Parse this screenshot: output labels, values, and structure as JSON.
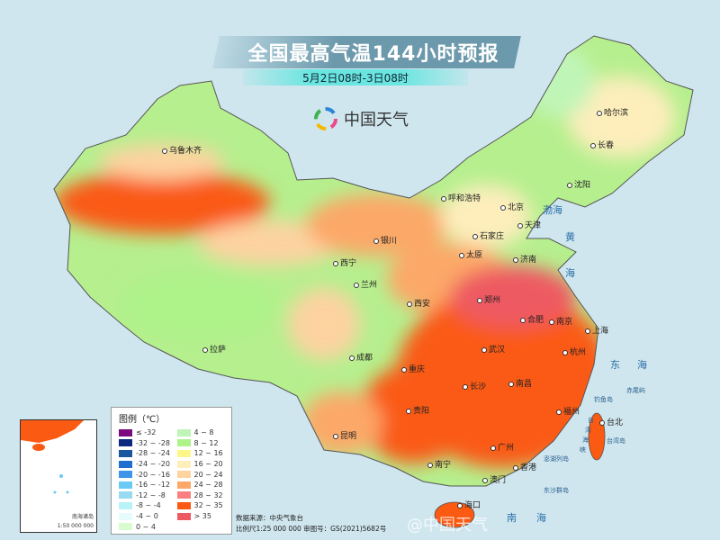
{
  "header": {
    "title": "全国最高气温144小时预报",
    "subtitle": "5月2日08时-3日08时"
  },
  "logo": {
    "icon": "pinwheel-logo-icon",
    "text": "中国天气"
  },
  "cities": [
    "乌鲁木齐",
    "哈尔滨",
    "长春",
    "沈阳",
    "呼和浩特",
    "北京",
    "天津",
    "石家庄",
    "银川",
    "太原",
    "济南",
    "西宁",
    "兰州",
    "郑州",
    "西安",
    "合肥",
    "南京",
    "上海",
    "拉萨",
    "成都",
    "武汉",
    "杭州",
    "重庆",
    "长沙",
    "南昌",
    "贵阳",
    "福州",
    "台北",
    "昆明",
    "广州",
    "南宁",
    "香港",
    "澳门",
    "海口"
  ],
  "seas": {
    "bohai": "渤海",
    "huang": "黄",
    "hai1": "海",
    "dong": "东",
    "hai2": "海",
    "nan": "南",
    "hai3": "海"
  },
  "islands": {
    "diaoyu": "钓鱼岛",
    "chiwei": "赤尾屿",
    "taiwan": "台湾岛",
    "penghu": "澎湖列岛",
    "dongsha": "东沙群岛",
    "strait1": "台",
    "strait2": "湾",
    "strait3": "海",
    "strait4": "峡"
  },
  "legend": {
    "title": "图例（℃）",
    "items": [
      {
        "label": "≤ -32",
        "color": "#7a0a7e"
      },
      {
        "label": "-32 ~ -28",
        "color": "#0a2a80"
      },
      {
        "label": "-28 ~ -24",
        "color": "#1a55a0"
      },
      {
        "label": "-24 ~ -20",
        "color": "#1f6fd0"
      },
      {
        "label": "-20 ~ -16",
        "color": "#3c95e8"
      },
      {
        "label": "-16 ~ -12",
        "color": "#6cc8f5"
      },
      {
        "label": "-12 ~ -8",
        "color": "#98daf0"
      },
      {
        "label": "-8 ~ -4",
        "color": "#b8f3f8"
      },
      {
        "label": "-4 ~ 0",
        "color": "#e6fcfc"
      },
      {
        "label": "0 ~ 4",
        "color": "#d8fbd0"
      },
      {
        "label": "4 ~ 8",
        "color": "#c0f5b8"
      },
      {
        "label": "8 ~ 12",
        "color": "#aef28a"
      },
      {
        "label": "12 ~ 16",
        "color": "#fcf788"
      },
      {
        "label": "16 ~ 20",
        "color": "#fdeebc"
      },
      {
        "label": "20 ~ 24",
        "color": "#fdd3a0"
      },
      {
        "label": "24 ~ 28",
        "color": "#fca868"
      },
      {
        "label": "28 ~ 32",
        "color": "#f88080"
      },
      {
        "label": "32 ~ 35",
        "color": "#fa5a12"
      },
      {
        "label": "> 35",
        "color": "#ee5a62"
      }
    ]
  },
  "inset": {
    "label": "南海诸岛",
    "scale": "1:50 000 000"
  },
  "footer": {
    "source": "数据来源：中央气象台",
    "scale": "比例尺1:25 000 000  审图号：GS(2021)5682号"
  },
  "watermark": "@中国天气"
}
